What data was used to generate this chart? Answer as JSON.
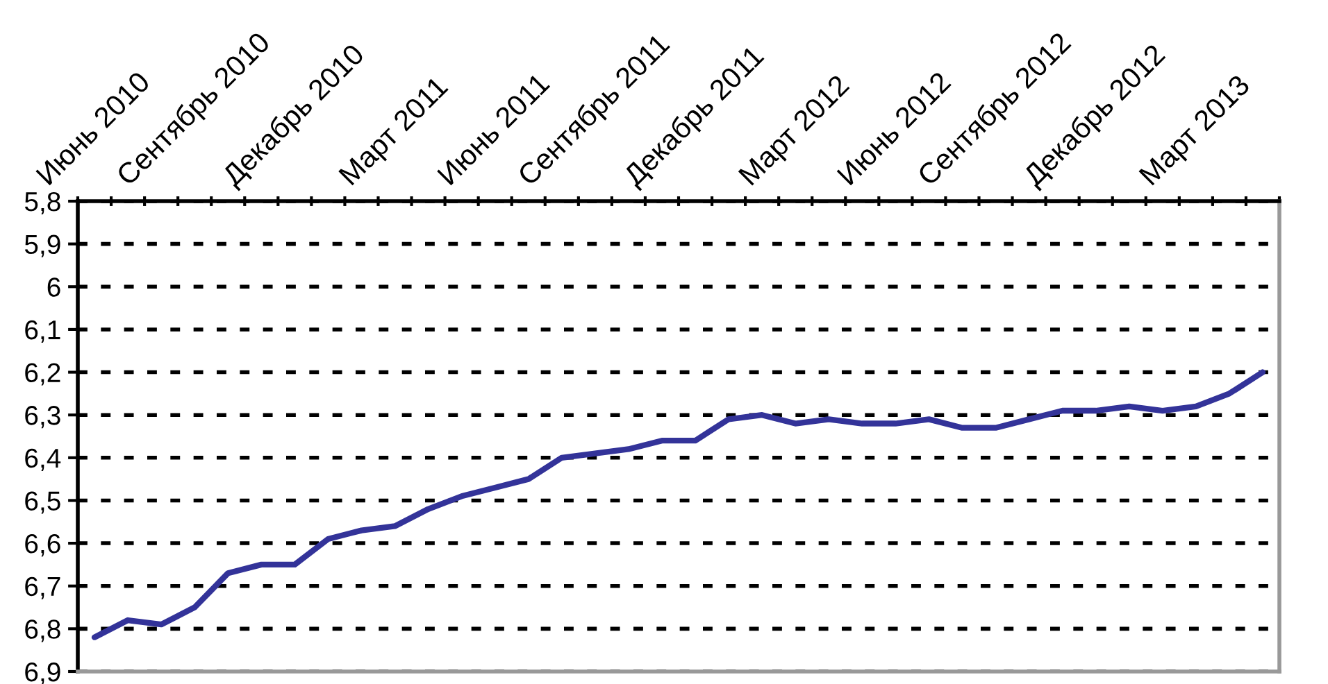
{
  "chart_data": {
    "type": "line",
    "categories": [
      "Июнь 2010",
      null,
      null,
      "Сентябрь 2010",
      null,
      null,
      "Декабрь 2010",
      null,
      null,
      "Март 2011",
      null,
      null,
      "Июнь 2011",
      null,
      null,
      "Сентябрь 2011",
      null,
      null,
      "Декабрь 2011",
      null,
      null,
      "Март 2012",
      null,
      null,
      "Июнь 2012",
      null,
      null,
      "Сентябрь 2012",
      null,
      null,
      "Декабрь 2012",
      null,
      null,
      "Март 2013",
      null,
      null
    ],
    "series": [
      {
        "color": "#333399",
        "values": [
          6.82,
          6.78,
          6.79,
          6.75,
          6.67,
          6.65,
          6.65,
          6.59,
          6.57,
          6.56,
          6.52,
          6.49,
          6.47,
          6.45,
          6.4,
          6.39,
          6.38,
          6.36,
          6.36,
          6.31,
          6.3,
          6.32,
          6.31,
          6.32,
          6.32,
          6.31,
          6.33,
          6.33,
          6.31,
          6.29,
          6.29,
          6.28,
          6.29,
          6.28,
          6.25,
          6.2
        ]
      }
    ],
    "ylim": [
      6.9,
      5.8
    ],
    "yticks": [
      {
        "value": 5.8,
        "label": "5,8"
      },
      {
        "value": 5.9,
        "label": "5,9"
      },
      6,
      {
        "value": 6.1,
        "label": "6,1"
      },
      {
        "value": 6.2,
        "label": "6,2"
      },
      {
        "value": 6.3,
        "label": "6,3"
      },
      {
        "value": 6.4,
        "label": "6,4"
      },
      {
        "value": 6.5,
        "label": "6,5"
      },
      {
        "value": 6.6,
        "label": "6,6"
      },
      {
        "value": 6.7,
        "label": "6,7"
      },
      {
        "value": 6.8,
        "label": "6,8"
      },
      {
        "value": 6.9,
        "label": "6,9"
      }
    ],
    "grid": "y"
  }
}
